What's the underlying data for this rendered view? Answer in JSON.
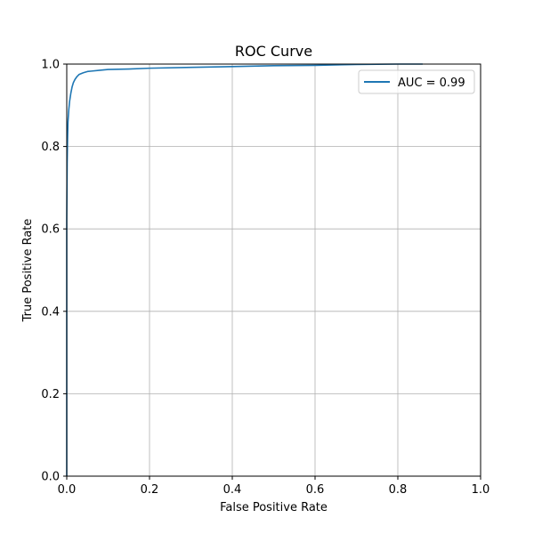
{
  "chart_data": {
    "type": "line",
    "title": "ROC Curve",
    "xlabel": "False Positive Rate",
    "ylabel": "True Positive Rate",
    "xlim": [
      0,
      1
    ],
    "ylim": [
      0,
      1
    ],
    "xticks": [
      "0.0",
      "0.2",
      "0.4",
      "0.6",
      "0.8",
      "1.0"
    ],
    "yticks": [
      "0.0",
      "0.2",
      "0.4",
      "0.6",
      "0.8",
      "1.0"
    ],
    "grid": true,
    "legend_position": "top-right",
    "series": [
      {
        "name": "AUC = 0.99",
        "color": "#1f77b4",
        "x": [
          0.0,
          0.0,
          0.001,
          0.002,
          0.003,
          0.005,
          0.007,
          0.01,
          0.013,
          0.016,
          0.02,
          0.025,
          0.03,
          0.04,
          0.05,
          0.06,
          0.08,
          0.1,
          0.15,
          0.2,
          0.3,
          0.4,
          0.5,
          0.6,
          0.7,
          0.8,
          0.86
        ],
        "y": [
          0.0,
          0.62,
          0.76,
          0.82,
          0.86,
          0.89,
          0.91,
          0.93,
          0.945,
          0.955,
          0.963,
          0.97,
          0.975,
          0.979,
          0.982,
          0.983,
          0.985,
          0.987,
          0.988,
          0.99,
          0.992,
          0.994,
          0.996,
          0.997,
          0.999,
          1.0,
          1.0
        ]
      }
    ]
  }
}
